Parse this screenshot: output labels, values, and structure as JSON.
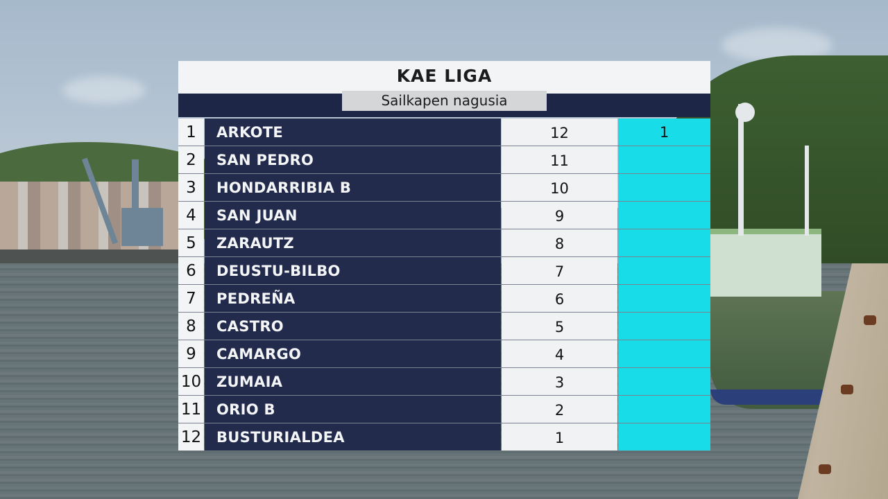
{
  "title": "KAE  LIGA",
  "subtitle": "Sailkapen nagusia",
  "colors": {
    "team_bg": "#232b4d",
    "light_bg": "#f1f2f4",
    "accent_cyan": "#18dce8",
    "subtitle_bg": "#d5d6d8"
  },
  "standings": [
    {
      "pos": "1",
      "team": "ARKOTE",
      "points": "12",
      "extra": "1"
    },
    {
      "pos": "2",
      "team": "SAN PEDRO",
      "points": "11",
      "extra": ""
    },
    {
      "pos": "3",
      "team": "HONDARRIBIA B",
      "points": "10",
      "extra": ""
    },
    {
      "pos": "4",
      "team": "SAN JUAN",
      "points": "9",
      "extra": ""
    },
    {
      "pos": "5",
      "team": "ZARAUTZ",
      "points": "8",
      "extra": ""
    },
    {
      "pos": "6",
      "team": "DEUSTU-BILBO",
      "points": "7",
      "extra": ""
    },
    {
      "pos": "7",
      "team": "PEDREÑA",
      "points": "6",
      "extra": ""
    },
    {
      "pos": "8",
      "team": "CASTRO",
      "points": "5",
      "extra": ""
    },
    {
      "pos": "9",
      "team": "CAMARGO",
      "points": "4",
      "extra": ""
    },
    {
      "pos": "10",
      "team": "ZUMAIA",
      "points": "3",
      "extra": ""
    },
    {
      "pos": "11",
      "team": "ORIO B",
      "points": "2",
      "extra": ""
    },
    {
      "pos": "12",
      "team": "BUSTURIALDEA",
      "points": "1",
      "extra": ""
    }
  ]
}
